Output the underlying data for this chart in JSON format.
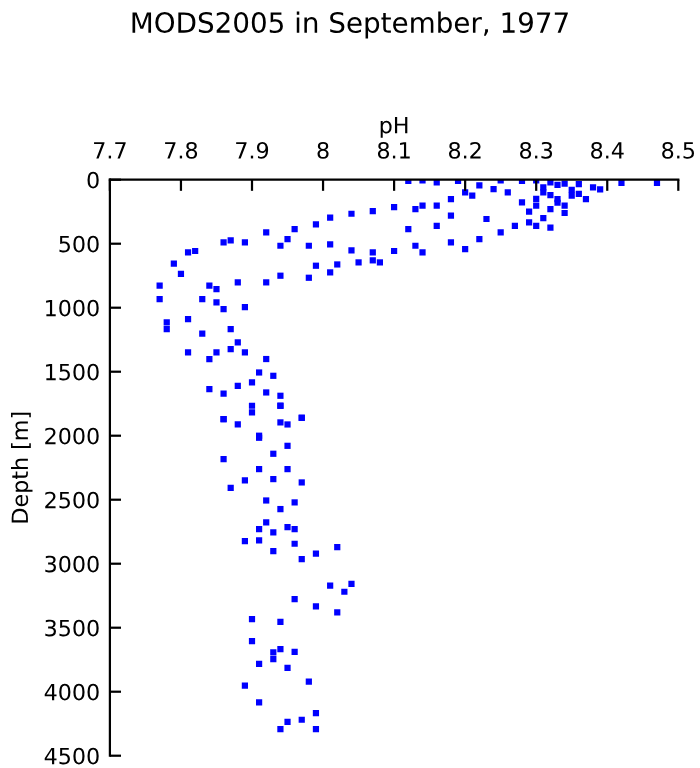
{
  "chart_data": {
    "type": "scatter",
    "title": "MODS2005 in September, 1977",
    "xlabel": "pH",
    "ylabel": "Depth [m]",
    "xlim": [
      7.7,
      8.5
    ],
    "xticks": [
      7.7,
      7.8,
      7.9,
      8,
      8.1,
      8.2,
      8.3,
      8.4,
      8.5
    ],
    "ylim": [
      4500,
      0
    ],
    "yticks": [
      0,
      500,
      1000,
      1500,
      2000,
      2500,
      3000,
      3500,
      4000,
      4500
    ],
    "grid": false,
    "legend": false,
    "marker": "square",
    "series": [
      {
        "color": "#0000ff",
        "x": [
          8.12,
          8.14,
          8.16,
          8.19,
          8.22,
          8.25,
          8.28,
          8.3,
          8.32,
          8.36,
          8.39,
          8.42,
          8.47,
          8.31,
          8.33,
          8.34,
          8.32,
          8.35,
          8.37,
          8.3,
          8.28,
          8.26,
          8.24,
          8.21,
          8.2,
          8.18,
          8.16,
          8.14,
          8.13,
          8.1,
          8.07,
          8.04,
          8.01,
          7.99,
          7.96,
          7.92,
          7.95,
          7.94,
          7.89,
          7.87,
          7.86,
          7.82,
          7.81,
          7.79,
          7.8,
          7.77,
          7.77,
          7.78,
          7.78,
          7.81,
          7.83,
          7.81,
          7.84,
          7.85,
          7.87,
          7.88,
          7.89,
          7.92,
          7.91,
          7.93,
          7.84,
          7.86,
          7.88,
          7.9,
          7.92,
          7.94,
          7.9,
          7.94,
          7.86,
          7.88,
          7.94,
          7.97,
          7.91,
          7.98,
          8.01,
          8.04,
          8.07,
          8.1,
          8.13,
          8.14,
          8.18,
          8.2,
          8.22,
          8.25,
          8.27,
          8.29,
          8.3,
          8.32,
          8.23,
          8.18,
          8.16,
          8.12,
          8.05,
          8.02,
          7.99,
          8.07,
          8.08,
          8.01,
          7.98,
          7.94,
          7.92,
          7.88,
          7.85,
          7.84,
          7.83,
          7.85,
          7.89,
          7.86,
          7.87,
          8.31,
          8.32,
          8.33,
          8.34,
          8.3,
          8.33,
          8.35,
          8.36,
          8.29,
          8.31,
          8.34,
          8.38,
          7.9,
          7.94,
          7.86,
          7.95,
          7.97,
          7.91,
          7.95,
          7.93,
          7.86,
          7.91,
          7.95,
          7.89,
          7.93,
          7.97,
          7.87,
          7.92,
          7.96,
          7.94,
          7.92,
          7.91,
          7.95,
          7.96,
          7.93,
          7.89,
          7.91,
          7.96,
          7.93,
          7.97,
          7.99,
          8.02,
          8.01,
          8.04,
          8.03,
          7.96,
          7.99,
          8.02,
          7.9,
          7.94,
          7.9,
          7.94,
          7.93,
          7.96,
          7.91,
          7.93,
          7.95,
          7.98,
          7.89,
          7.91,
          7.99,
          7.97,
          7.95,
          7.94,
          7.99
        ],
        "values": [
          10,
          5,
          20,
          10,
          45,
          5,
          10,
          5,
          20,
          35,
          75,
          25,
          25,
          99,
          151,
          203,
          229,
          125,
          151,
          203,
          177,
          99,
          73,
          125,
          99,
          151,
          203,
          203,
          229,
          214,
          245,
          266,
          297,
          349,
          386,
          412,
          464,
          516,
          490,
          474,
          490,
          557,
          568,
          656,
          735,
          828,
          933,
          1115,
          1167,
          1089,
          1203,
          1349,
          1401,
          1349,
          1323,
          1271,
          1349,
          1401,
          1506,
          1532,
          1636,
          1672,
          1610,
          1584,
          1662,
          1688,
          1766,
          1766,
          1870,
          1912,
          1896,
          1860,
          2000,
          516,
          505,
          552,
          568,
          557,
          516,
          568,
          490,
          542,
          464,
          412,
          360,
          333,
          360,
          375,
          307,
          281,
          360,
          386,
          646,
          662,
          672,
          630,
          646,
          724,
          766,
          750,
          802,
          802,
          854,
          828,
          933,
          959,
          995,
          1011,
          1167,
          60,
          120,
          180,
          260,
          150,
          40,
          80,
          110,
          250,
          300,
          30,
          60,
          1818,
          1766,
          1870,
          1912,
          1860,
          2016,
          2079,
          2141,
          2183,
          2261,
          2261,
          2349,
          2339,
          2365,
          2407,
          2506,
          2521,
          2573,
          2677,
          2730,
          2714,
          2730,
          2756,
          2823,
          2818,
          2844,
          2901,
          2964,
          2922,
          2870,
          3172,
          3157,
          3219,
          3276,
          3334,
          3381,
          3433,
          3454,
          3605,
          3667,
          3693,
          3688,
          3782,
          3745,
          3813,
          3922,
          3953,
          4084,
          4167,
          4219,
          4235,
          4292,
          4292
        ]
      }
    ]
  }
}
